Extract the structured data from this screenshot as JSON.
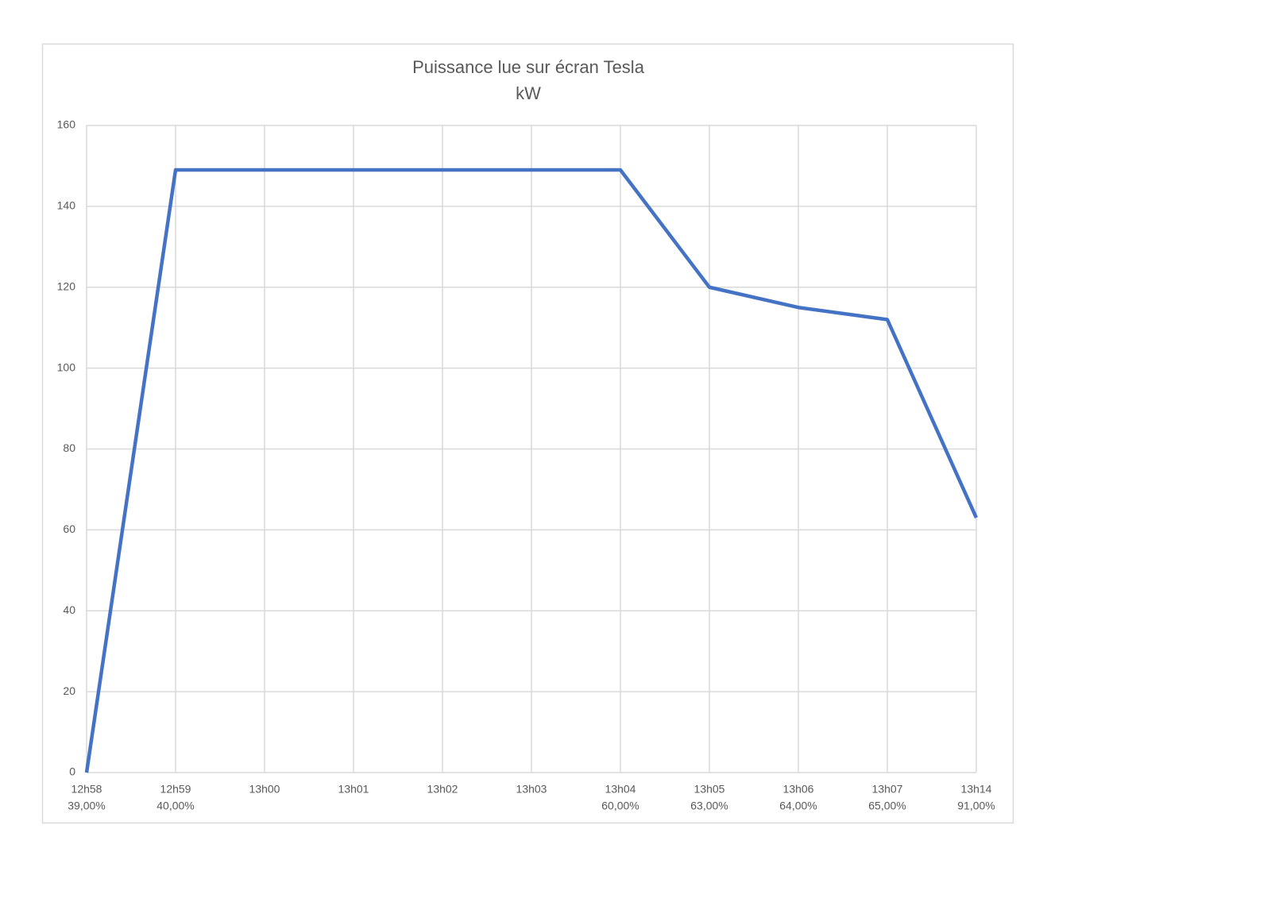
{
  "chart_data": {
    "type": "line",
    "title": "Puissance lue sur écran Tesla",
    "subtitle": "kW",
    "categories": [
      "12h58",
      "12h59",
      "13h00",
      "13h01",
      "13h02",
      "13h03",
      "13h04",
      "13h05",
      "13h06",
      "13h07",
      "13h14"
    ],
    "x_sublabels": [
      "39,00%",
      "40,00%",
      null,
      null,
      null,
      null,
      "60,00%",
      "63,00%",
      "64,00%",
      "65,00%",
      "91,00%"
    ],
    "values": [
      0,
      149,
      149,
      149,
      149,
      149,
      149,
      120,
      115,
      112,
      63
    ],
    "color": "#4472c4",
    "ylim": [
      0,
      160
    ],
    "yticks": [
      0,
      20,
      40,
      60,
      80,
      100,
      120,
      140,
      160
    ],
    "grid": true
  }
}
